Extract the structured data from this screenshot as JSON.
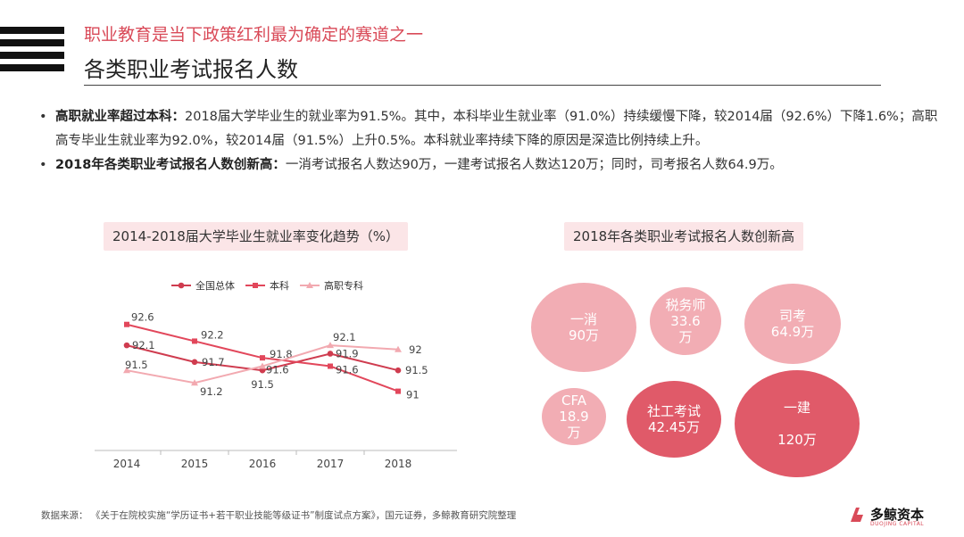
{
  "header": {
    "subtitle": "职业教育是当下政策红利最为确定的赛道之一",
    "title": "各类职业考试报名人数"
  },
  "bullets": [
    {
      "marker": "•",
      "bold": "高职就业率超过本科：",
      "text": "2018届大学毕业生的就业率为91.5%。其中，本科毕业生就业率（91.0%）持续缓慢下降，较2014届（92.6%）下降1.6%；高职高专毕业生就业率为92.0%，较2014届（91.5%）上升0.5%。本科就业率持续下降的原因是深造比例持续上升。"
    },
    {
      "marker": "•",
      "bold": "2018年各类职业考试报名人数创新高：",
      "text": "一消考试报名人数达90万，一建考试报名人数达120万；同时，司考报名人数64.9万。"
    }
  ],
  "chart_data": [
    {
      "type": "line",
      "title": "2014-2018届大学毕业生就业率变化趋势（%）",
      "x": [
        "2014",
        "2015",
        "2016",
        "2017",
        "2018"
      ],
      "ylim": [
        90.5,
        93.0
      ],
      "legend_position": "top",
      "grid": false,
      "series": [
        {
          "name": "全国总体",
          "values": [
            92.1,
            91.7,
            91.5,
            91.9,
            91.5
          ],
          "color": "#cf3c4f",
          "marker": "circle",
          "labels": [
            "92.1",
            "91.7",
            "91.5",
            "91.9",
            "91.5"
          ]
        },
        {
          "name": "本科",
          "values": [
            92.6,
            92.2,
            91.8,
            91.6,
            91.0
          ],
          "color": "#e2475b",
          "marker": "square",
          "labels": [
            "92.6",
            "92.2",
            "91.8",
            "91.6",
            "91"
          ]
        },
        {
          "name": "高职专科",
          "values": [
            91.5,
            91.2,
            91.6,
            92.1,
            92.0
          ],
          "color": "#f2a9b0",
          "marker": "triangle",
          "labels": [
            "91.5",
            "91.2",
            "91.6",
            "92.1",
            "92"
          ]
        }
      ]
    },
    {
      "type": "bubble",
      "title": "2018年各类职业考试报名人数创新高",
      "items": [
        {
          "name": "一消",
          "value": "90万",
          "amount": 90
        },
        {
          "name": "税务师",
          "value": "33.6万",
          "amount": 33.6
        },
        {
          "name": "司考",
          "value": "64.9万",
          "amount": 64.9
        },
        {
          "name": "CFA",
          "value": "18.9万",
          "amount": 18.9
        },
        {
          "name": "社工考试",
          "value": "42.45万",
          "amount": 42.45
        },
        {
          "name": "一建",
          "value": "120万",
          "amount": 120
        }
      ]
    }
  ],
  "bubble_text": {
    "b0": "一消\n90万",
    "b1": "税务师\n33.6\n万",
    "b2": "司考\n64.9万",
    "b3": "CFA\n18.9\n万",
    "b4": "社工考试\n42.45万",
    "b5": "一建\n\n120万"
  },
  "colors": {
    "accent": "#d94a58",
    "bubble_light": "#f2adb4",
    "bubble_dark": "#e05a69",
    "title_bg": "#fbe5e7"
  },
  "footer": {
    "source": "数据来源：   《关于在院校实施“学历证书+若干职业技能等级证书”制度试点方案》，国元证券，多鲸教育研究院整理"
  },
  "logo": {
    "name": "多鲸资本",
    "sub": "DUOJING CAPITAL",
    "icon": "whale-logo-icon"
  }
}
